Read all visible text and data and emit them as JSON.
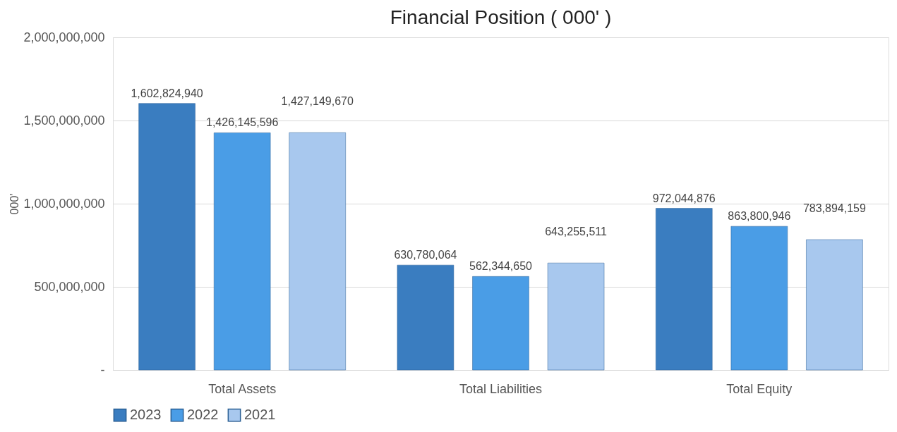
{
  "chart_data": {
    "type": "bar",
    "title": "Financial Position ( 000' )",
    "ylabel": "000'",
    "categories": [
      "Total Assets",
      "Total Liabilities",
      "Total Equity"
    ],
    "series": [
      {
        "name": "2023",
        "color": "#3a7dc0",
        "values": [
          1602824940,
          630780064,
          972044876
        ],
        "value_labels": [
          "1,602,824,940",
          "630,780,064",
          "972,044,876"
        ]
      },
      {
        "name": "2022",
        "color": "#4a9de6",
        "values": [
          1426145596,
          562344650,
          863800946
        ],
        "value_labels": [
          "1,426,145,596",
          "562,344,650",
          "863,800,946"
        ]
      },
      {
        "name": "2021",
        "color": "#a8c8ee",
        "values": [
          1427149670,
          643255511,
          783894159
        ],
        "value_labels": [
          "1,427,149,670",
          "643,255,511",
          "783,894,159"
        ]
      }
    ],
    "ylim": [
      0,
      2000000000
    ],
    "yticks": [
      {
        "value": 0,
        "label": "-"
      },
      {
        "value": 500000000,
        "label": "500,000,000"
      },
      {
        "value": 1000000000,
        "label": "1,000,000,000"
      },
      {
        "value": 1500000000,
        "label": "1,500,000,000"
      },
      {
        "value": 2000000000,
        "label": "2,000,000,000"
      }
    ],
    "grid": "y",
    "legend": "bottom"
  }
}
